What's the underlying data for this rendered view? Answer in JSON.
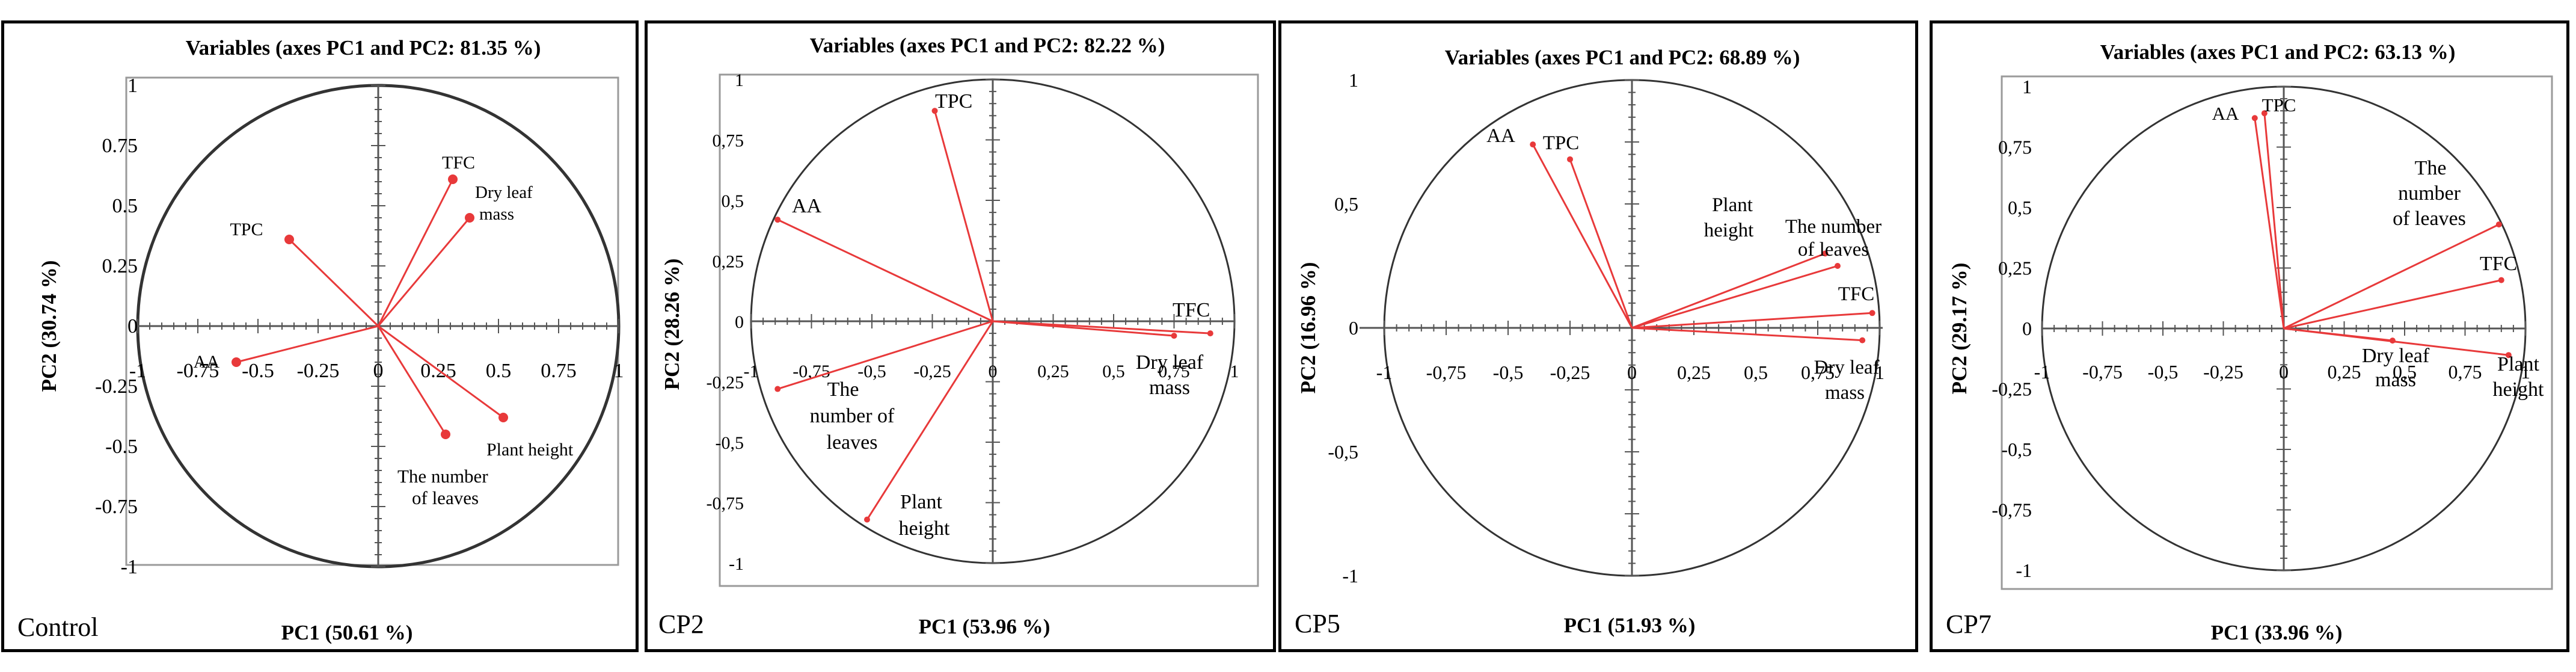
{
  "figure": {
    "panels": [
      {
        "id": "control",
        "label": "Control"
      },
      {
        "id": "cp2",
        "label": "CP2"
      },
      {
        "id": "cp5",
        "label": "CP5"
      },
      {
        "id": "cp7",
        "label": "CP7"
      }
    ]
  },
  "chart_data": [
    {
      "type": "scatter",
      "variant": "pca-correlation-circle",
      "panel_label": "Control",
      "title": "Variables (axes PC1 and PC2: 81.35 %)",
      "xlabel": "PC1 (50.61 %)",
      "ylabel": "PC2 (30.74 %)",
      "xlim": [
        -1,
        1
      ],
      "ylim": [
        -1,
        1
      ],
      "xticks": [
        "-1",
        "-0.75",
        "-0.5",
        "-0.25",
        "0",
        "0.25",
        "0.5",
        "0.75",
        "1"
      ],
      "yticks": [
        "1",
        "0.75",
        "0.5",
        "0.25",
        "0",
        "-0.25",
        "-0.5",
        "-0.75",
        "-1"
      ],
      "points": [
        {
          "name": "TPC",
          "x": -0.37,
          "y": 0.36
        },
        {
          "name": "TFC",
          "x": 0.31,
          "y": 0.61
        },
        {
          "name": "Dry leaf mass",
          "x": 0.38,
          "y": 0.45
        },
        {
          "name": "AA",
          "x": -0.59,
          "y": -0.15
        },
        {
          "name": "Plant height",
          "x": 0.52,
          "y": -0.38
        },
        {
          "name": "The number of leaves",
          "x": 0.28,
          "y": -0.45
        }
      ]
    },
    {
      "type": "scatter",
      "variant": "pca-correlation-circle",
      "panel_label": "CP2",
      "title": "Variables (axes PC1 and PC2: 82.22 %)",
      "xlabel": "PC1 (53.96 %)",
      "ylabel": "PC2 (28.26 %)",
      "xlim": [
        -1,
        1
      ],
      "ylim": [
        -1,
        1
      ],
      "xticks": [
        "-1",
        "-0,75",
        "-0,5",
        "-0,25",
        "0",
        "0,25",
        "0,5",
        "0,75",
        "1"
      ],
      "yticks": [
        "1",
        "0,75",
        "0,5",
        "0,25",
        "0",
        "-0,25",
        "-0,5",
        "-0,75",
        "-1"
      ],
      "points": [
        {
          "name": "TPC",
          "x": -0.24,
          "y": 0.87
        },
        {
          "name": "AA",
          "x": -0.89,
          "y": 0.42
        },
        {
          "name": "TFC",
          "x": 0.9,
          "y": -0.05
        },
        {
          "name": "Dry leaf mass",
          "x": 0.75,
          "y": -0.06
        },
        {
          "name": "The number of leaves",
          "x": -0.89,
          "y": -0.28
        },
        {
          "name": "Plant height",
          "x": -0.52,
          "y": -0.82
        }
      ]
    },
    {
      "type": "scatter",
      "variant": "pca-correlation-circle",
      "panel_label": "CP5",
      "title": "Variables (axes PC1 and PC2: 68.89 %)",
      "xlabel": "PC1 (51.93 %)",
      "ylabel": "PC2 (16.96 %)",
      "xlim": [
        -1,
        1
      ],
      "ylim": [
        -1,
        1
      ],
      "xticks": [
        "-1",
        "-0,75",
        "-0,5",
        "-0,25",
        "0",
        "0,25",
        "0,5",
        "0,75",
        "1"
      ],
      "yticks": [
        "1",
        "0,5",
        "0",
        "-0,5",
        "-1"
      ],
      "points": [
        {
          "name": "AA",
          "x": -0.4,
          "y": 0.74
        },
        {
          "name": "TPC",
          "x": -0.25,
          "y": 0.68
        },
        {
          "name": "Plant height",
          "x": 0.78,
          "y": 0.3
        },
        {
          "name": "The number of leaves",
          "x": 0.83,
          "y": 0.25
        },
        {
          "name": "TFC",
          "x": 0.97,
          "y": 0.06
        },
        {
          "name": "Dry leaf mass",
          "x": 0.93,
          "y": -0.05
        }
      ]
    },
    {
      "type": "scatter",
      "variant": "pca-correlation-circle",
      "panel_label": "CP7",
      "title": "Variables (axes PC1 and PC2: 63.13 %)",
      "xlabel": "PC1 (33.96 %)",
      "ylabel": "PC2 (29.17 %)",
      "xlim": [
        -1,
        1
      ],
      "ylim": [
        -1,
        1
      ],
      "xticks": [
        "-1",
        "-0,75",
        "-0,5",
        "-0,25",
        "0",
        "0,25",
        "0,5",
        "0,75",
        "1"
      ],
      "yticks": [
        "1",
        "0,75",
        "0,5",
        "0,25",
        "0",
        "-0,25",
        "-0,5",
        "-0,75",
        "-1"
      ],
      "points": [
        {
          "name": "AA",
          "x": -0.12,
          "y": 0.87
        },
        {
          "name": "TPC",
          "x": -0.08,
          "y": 0.89
        },
        {
          "name": "The number of leaves",
          "x": 0.89,
          "y": 0.43
        },
        {
          "name": "TFC",
          "x": 0.9,
          "y": 0.2
        },
        {
          "name": "Dry leaf mass",
          "x": 0.45,
          "y": -0.05
        },
        {
          "name": "Plant height",
          "x": 0.93,
          "y": -0.11
        }
      ]
    }
  ]
}
